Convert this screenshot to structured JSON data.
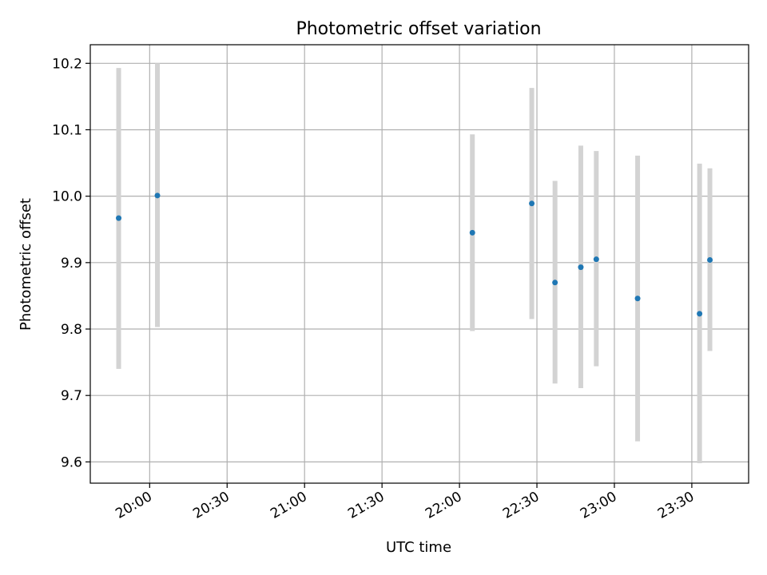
{
  "chart_data": {
    "type": "scatter",
    "title": "Photometric offset variation",
    "xlabel": "UTC time",
    "ylabel": "Photometric offset",
    "x_axis": "time (UTC)",
    "xlim": [
      "19:37:00",
      "23:52:00"
    ],
    "ylim": [
      9.568,
      10.228
    ],
    "yticks": [
      9.6,
      9.7,
      9.8,
      9.9,
      10.0,
      10.1,
      10.2
    ],
    "ytick_labels": [
      "9.6",
      "9.7",
      "9.8",
      "9.9",
      "10.0",
      "10.1",
      "10.2"
    ],
    "xticks": [
      "20:00",
      "20:30",
      "21:00",
      "21:30",
      "22:00",
      "22:30",
      "23:00",
      "23:30"
    ],
    "xtick_labels": [
      "20:00",
      "20:30",
      "21:00",
      "21:30",
      "22:00",
      "22:30",
      "23:00",
      "23:30"
    ],
    "grid": true,
    "point_color": "#1f77b4",
    "errorbar_color": "#d3d3d3",
    "points": [
      {
        "x": "19:48",
        "y": 9.967,
        "ylow": 9.74,
        "yhigh": 10.193
      },
      {
        "x": "20:03",
        "y": 10.001,
        "ylow": 9.803,
        "yhigh": 10.2
      },
      {
        "x": "22:05",
        "y": 9.945,
        "ylow": 9.797,
        "yhigh": 10.093
      },
      {
        "x": "22:28",
        "y": 9.989,
        "ylow": 9.815,
        "yhigh": 10.163
      },
      {
        "x": "22:37",
        "y": 9.87,
        "ylow": 9.718,
        "yhigh": 10.023
      },
      {
        "x": "22:47",
        "y": 9.893,
        "ylow": 9.711,
        "yhigh": 10.076
      },
      {
        "x": "22:53",
        "y": 9.905,
        "ylow": 9.744,
        "yhigh": 10.068
      },
      {
        "x": "23:09",
        "y": 9.846,
        "ylow": 9.631,
        "yhigh": 10.061
      },
      {
        "x": "23:33",
        "y": 9.823,
        "ylow": 9.598,
        "yhigh": 10.049
      },
      {
        "x": "23:37",
        "y": 9.904,
        "ylow": 9.767,
        "yhigh": 10.042
      }
    ]
  }
}
